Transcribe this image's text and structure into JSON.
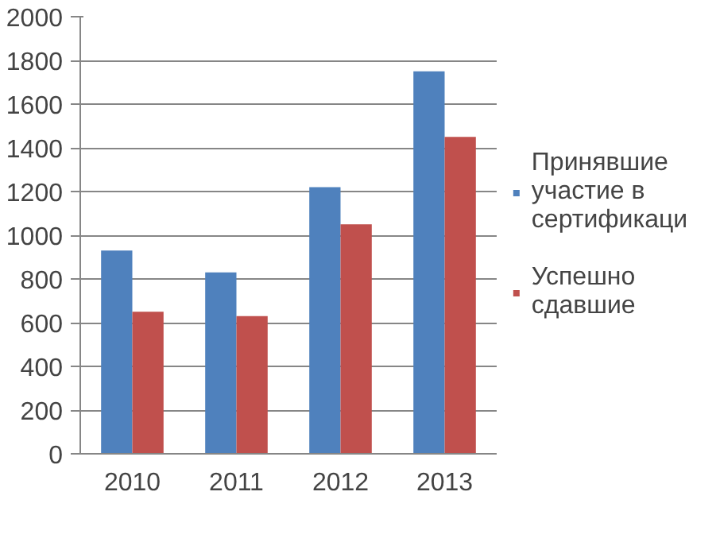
{
  "chart_data": {
    "type": "bar",
    "categories": [
      "2010",
      "2011",
      "2012",
      "2013"
    ],
    "series": [
      {
        "name": "Принявшие участие в сертификаци",
        "color": "#4f81bd",
        "values": [
          930,
          830,
          1220,
          1750
        ]
      },
      {
        "name": "Успешно сдавшие",
        "color": "#c0504d",
        "values": [
          650,
          630,
          1050,
          1450
        ]
      }
    ],
    "ylim": [
      0,
      2000
    ],
    "yticks": [
      0,
      200,
      400,
      600,
      800,
      1000,
      1200,
      1400,
      1600,
      1800,
      2000
    ],
    "grid": "y",
    "legend": "right"
  }
}
